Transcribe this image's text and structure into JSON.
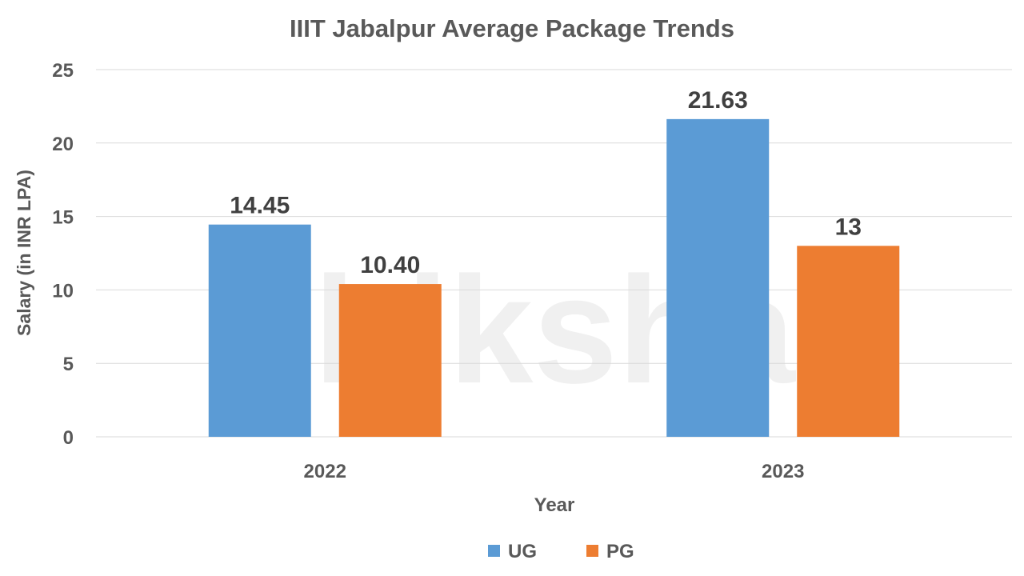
{
  "chart_data": {
    "type": "bar",
    "title": "IIIT Jabalpur Average Package Trends",
    "xlabel": "Year",
    "ylabel": "Salary (in INR LPA)",
    "categories": [
      "2022",
      "2023"
    ],
    "series": [
      {
        "name": "UG",
        "values": [
          14.45,
          21.63
        ],
        "labels": [
          "14.45",
          "21.63"
        ],
        "color": "#5B9BD5"
      },
      {
        "name": "PG",
        "values": [
          10.4,
          13
        ],
        "labels": [
          "10.40",
          "13"
        ],
        "color": "#ED7D31"
      }
    ],
    "ylim": [
      0,
      25
    ],
    "yticks": [
      "0",
      "5",
      "10",
      "15",
      "20",
      "25"
    ],
    "grid": true,
    "legend_position": "bottom",
    "watermark": "shiksha"
  }
}
